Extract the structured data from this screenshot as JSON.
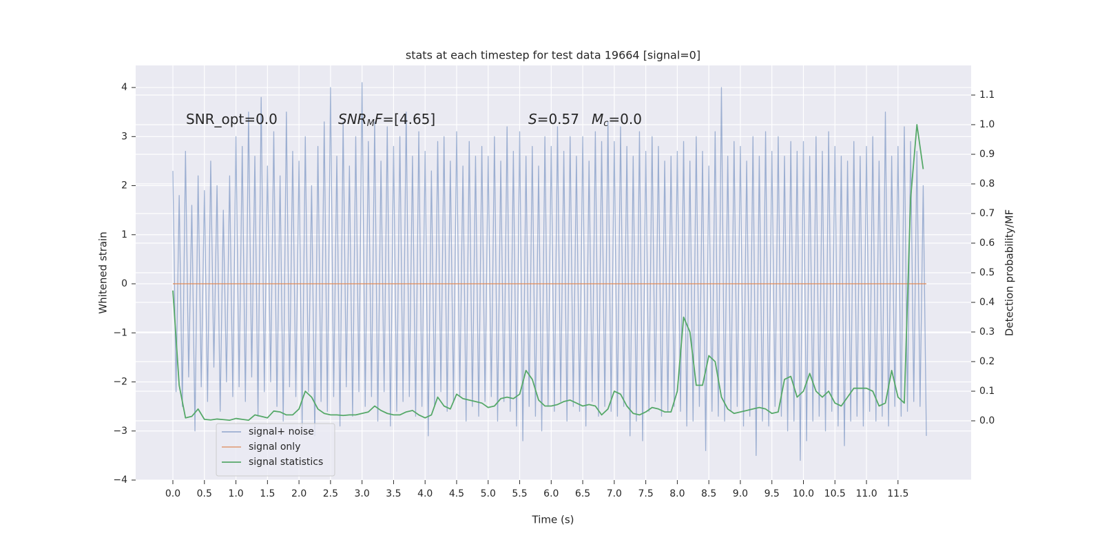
{
  "chart_data": {
    "type": "line",
    "title": "stats at each timestep for test data 19664 [signal=0]",
    "xlabel": "Time (s)",
    "ylabel": "Whitened strain",
    "y2label": "Detection probability/MF",
    "xlim": [
      -0.59,
      12.66
    ],
    "ylim": [
      -4.0,
      4.45
    ],
    "y2lim": [
      -0.2,
      1.2
    ],
    "xticks": [
      {
        "value": 0,
        "label": "0.0"
      },
      0.5,
      {
        "value": 1,
        "label": "1.0"
      },
      1.5,
      {
        "value": 2,
        "label": "2.0"
      },
      2.5,
      {
        "value": 3,
        "label": "3.0"
      },
      3.5,
      {
        "value": 4,
        "label": "4.0"
      },
      4.5,
      {
        "value": 5,
        "label": "5.0"
      },
      5.5,
      {
        "value": 6,
        "label": "6.0"
      },
      6.5,
      {
        "value": 7,
        "label": "7.0"
      },
      7.5,
      {
        "value": 8,
        "label": "8.0"
      },
      8.5,
      {
        "value": 9,
        "label": "9.0"
      },
      9.5,
      {
        "value": 10,
        "label": "10.0"
      },
      10.5,
      {
        "value": 11,
        "label": "11.0"
      },
      11.5
    ],
    "yticks": [
      {
        "value": -4,
        "label": "−4"
      },
      {
        "value": -3,
        "label": "−3"
      },
      {
        "value": -2,
        "label": "−2"
      },
      {
        "value": -1,
        "label": "−1"
      },
      0,
      1,
      2,
      3,
      4
    ],
    "y2ticks": [
      {
        "value": 0,
        "label": "0.0"
      },
      0.1,
      0.2,
      0.3,
      0.4,
      0.5,
      0.6,
      0.7,
      0.8,
      0.9,
      {
        "value": 1,
        "label": "1.0"
      },
      1.1
    ],
    "grid": true,
    "legend": "lower left",
    "annotations": [
      {
        "parts": [
          {
            "text": "SNR_opt=0.0"
          }
        ]
      },
      {
        "parts": [
          {
            "text": "SNR",
            "italic": true
          },
          {
            "text": "M",
            "italic": true,
            "sub": true
          },
          {
            "text": "F",
            "italic": true
          },
          {
            "text": "=[4.65]"
          }
        ]
      },
      {
        "parts": [
          {
            "text": "S",
            "italic": true
          },
          {
            "text": "=0.57"
          }
        ]
      },
      {
        "parts": [
          {
            "text": "M",
            "italic": true
          },
          {
            "text": "c",
            "italic": true,
            "sub": true
          },
          {
            "text": "=0.0"
          }
        ]
      }
    ],
    "series": [
      {
        "name": "signal+ noise",
        "color": "#4c72b0",
        "opacity": 0.5,
        "x": [
          0,
          0.05,
          0.1,
          0.15,
          0.2,
          0.25,
          0.3,
          0.35,
          0.4,
          0.45,
          0.5,
          0.55,
          0.6,
          0.65,
          0.7,
          0.75,
          0.8,
          0.85,
          0.9,
          0.95,
          1,
          1.05,
          1.1,
          1.15,
          1.2,
          1.25,
          1.3,
          1.35,
          1.4,
          1.45,
          1.5,
          1.55,
          1.6,
          1.65,
          1.7,
          1.75,
          1.8,
          1.85,
          1.9,
          1.95,
          2,
          2.05,
          2.1,
          2.15,
          2.2,
          2.25,
          2.3,
          2.35,
          2.4,
          2.45,
          2.5,
          2.55,
          2.6,
          2.65,
          2.7,
          2.75,
          2.8,
          2.85,
          2.9,
          2.95,
          3,
          3.05,
          3.1,
          3.15,
          3.2,
          3.25,
          3.3,
          3.35,
          3.4,
          3.45,
          3.5,
          3.55,
          3.6,
          3.65,
          3.7,
          3.75,
          3.8,
          3.85,
          3.9,
          3.95,
          4,
          4.05,
          4.1,
          4.15,
          4.2,
          4.25,
          4.3,
          4.35,
          4.4,
          4.45,
          4.5,
          4.55,
          4.6,
          4.65,
          4.7,
          4.75,
          4.8,
          4.85,
          4.9,
          4.95,
          5,
          5.05,
          5.1,
          5.15,
          5.2,
          5.25,
          5.3,
          5.35,
          5.4,
          5.45,
          5.5,
          5.55,
          5.6,
          5.65,
          5.7,
          5.75,
          5.8,
          5.85,
          5.9,
          5.95,
          6,
          6.05,
          6.1,
          6.15,
          6.2,
          6.25,
          6.3,
          6.35,
          6.4,
          6.45,
          6.5,
          6.55,
          6.6,
          6.65,
          6.7,
          6.75,
          6.8,
          6.85,
          6.9,
          6.95,
          7,
          7.05,
          7.1,
          7.15,
          7.2,
          7.25,
          7.3,
          7.35,
          7.4,
          7.45,
          7.5,
          7.55,
          7.6,
          7.65,
          7.7,
          7.75,
          7.8,
          7.85,
          7.9,
          7.95,
          8,
          8.05,
          8.1,
          8.15,
          8.2,
          8.25,
          8.3,
          8.35,
          8.4,
          8.45,
          8.5,
          8.55,
          8.6,
          8.65,
          8.7,
          8.75,
          8.8,
          8.85,
          8.9,
          8.95,
          9,
          9.05,
          9.1,
          9.15,
          9.2,
          9.25,
          9.3,
          9.35,
          9.4,
          9.45,
          9.5,
          9.55,
          9.6,
          9.65,
          9.7,
          9.75,
          9.8,
          9.85,
          9.9,
          9.95,
          10,
          10.05,
          10.1,
          10.15,
          10.2,
          10.25,
          10.3,
          10.35,
          10.4,
          10.45,
          10.5,
          10.55,
          10.6,
          10.65,
          10.7,
          10.75,
          10.8,
          10.85,
          10.9,
          10.95,
          11,
          11.05,
          11.1,
          11.15,
          11.2,
          11.25,
          11.3,
          11.35,
          11.4,
          11.45,
          11.5,
          11.55,
          11.6,
          11.65,
          11.7,
          11.75,
          11.8,
          11.85,
          11.9,
          11.95
        ],
        "values": [
          2.3,
          -2.2,
          1.8,
          -2.5,
          2.7,
          -1.9,
          1.6,
          -3.0,
          2.2,
          -2.1,
          1.9,
          -2.4,
          2.5,
          -1.7,
          2.0,
          -2.6,
          1.5,
          -2.0,
          2.2,
          -2.3,
          3.0,
          -2.1,
          2.8,
          -2.4,
          3.5,
          -1.9,
          2.6,
          -2.7,
          3.8,
          -2.2,
          2.4,
          -2.0,
          3.1,
          -2.5,
          2.2,
          -2.8,
          3.5,
          -2.1,
          2.7,
          -2.3,
          2.5,
          -2.9,
          3.0,
          -2.2,
          2.0,
          -3.1,
          2.8,
          -2.4,
          3.3,
          -2.6,
          4.0,
          -2.3,
          2.6,
          -2.9,
          3.3,
          -2.1,
          2.4,
          -2.7,
          3.0,
          -2.2,
          4.1,
          -2.5,
          2.9,
          -2.3,
          3.3,
          -2.8,
          2.5,
          -2.2,
          3.2,
          -2.9,
          2.8,
          -2.6,
          3.0,
          -2.4,
          3.5,
          -2.3,
          2.6,
          -2.7,
          3.1,
          -2.5,
          2.7,
          -3.1,
          2.3,
          -2.5,
          2.9,
          -2.2,
          3.0,
          -2.6,
          2.5,
          -2.4,
          3.1,
          -2.3,
          2.4,
          -2.8,
          2.9,
          -2.5,
          2.6,
          -2.7,
          2.8,
          -2.4,
          2.6,
          -2.3,
          3.0,
          -2.8,
          2.5,
          -2.4,
          3.2,
          -2.6,
          2.7,
          -2.9,
          3.1,
          -3.2,
          2.6,
          -2.5,
          2.8,
          -2.7,
          2.4,
          -3.0,
          3.0,
          -2.5,
          2.8,
          -2.6,
          3.2,
          -2.4,
          2.7,
          -2.8,
          3.0,
          -2.5,
          2.6,
          -2.6,
          3.0,
          -2.9,
          2.5,
          -2.4,
          3.1,
          -2.7,
          2.9,
          -2.5,
          3.3,
          -2.6,
          2.9,
          -2.7,
          3.2,
          -2.5,
          2.8,
          -3.1,
          2.6,
          -2.8,
          3.1,
          -3.2,
          2.7,
          -2.6,
          3.0,
          -2.4,
          2.8,
          -2.7,
          2.5,
          -2.6,
          2.6,
          -2.5,
          2.7,
          -2.6,
          2.9,
          -2.9,
          2.5,
          -2.8,
          3.0,
          -2.5,
          2.7,
          -3.4,
          2.4,
          -2.6,
          3.1,
          -2.7,
          4.0,
          -2.8,
          2.6,
          -2.6,
          2.9,
          -2.5,
          2.8,
          -2.9,
          2.5,
          -2.7,
          3.0,
          -3.5,
          2.6,
          -2.8,
          3.1,
          -2.9,
          2.7,
          -2.5,
          3.0,
          -2.7,
          2.6,
          -3.0,
          2.9,
          -2.8,
          2.7,
          -3.6,
          2.9,
          -3.2,
          2.6,
          -2.8,
          3.0,
          -2.7,
          2.7,
          -3.0,
          3.1,
          -2.6,
          2.8,
          -2.9,
          2.6,
          -3.3,
          2.5,
          -2.8,
          2.9,
          -2.7,
          2.6,
          -2.9,
          2.8,
          -2.6,
          3.0,
          -2.8,
          2.5,
          -2.7,
          3.5,
          -2.9,
          2.6,
          -2.5,
          2.8,
          -2.7,
          3.2,
          -2.6,
          2.9,
          -2.4,
          2.7,
          -2.5,
          2.0,
          -3.1
        ]
      },
      {
        "name": "signal only",
        "color": "#dd8452",
        "opacity": 0.7,
        "x": [
          0,
          11.95
        ],
        "values": [
          0,
          0
        ]
      },
      {
        "name": "signal statistics",
        "color": "#55a868",
        "opacity": 1,
        "axis": "y2",
        "x": [
          0,
          0.1,
          0.2,
          0.3,
          0.4,
          0.5,
          0.6,
          0.7,
          0.8,
          0.9,
          1,
          1.1,
          1.2,
          1.3,
          1.4,
          1.5,
          1.6,
          1.7,
          1.8,
          1.9,
          2,
          2.1,
          2.2,
          2.3,
          2.4,
          2.5,
          2.6,
          2.7,
          2.8,
          2.9,
          3,
          3.1,
          3.2,
          3.3,
          3.4,
          3.5,
          3.6,
          3.7,
          3.8,
          3.9,
          4,
          4.1,
          4.2,
          4.3,
          4.4,
          4.5,
          4.6,
          4.7,
          4.8,
          4.9,
          5,
          5.1,
          5.2,
          5.3,
          5.4,
          5.5,
          5.6,
          5.7,
          5.8,
          5.9,
          6,
          6.1,
          6.2,
          6.3,
          6.4,
          6.5,
          6.6,
          6.7,
          6.8,
          6.9,
          7,
          7.1,
          7.2,
          7.3,
          7.4,
          7.5,
          7.6,
          7.7,
          7.8,
          7.9,
          8,
          8.1,
          8.2,
          8.3,
          8.4,
          8.5,
          8.6,
          8.7,
          8.8,
          8.9,
          9,
          9.1,
          9.2,
          9.3,
          9.4,
          9.5,
          9.6,
          9.7,
          9.8,
          9.9,
          10,
          10.1,
          10.2,
          10.3,
          10.4,
          10.5,
          10.6,
          10.7,
          10.8,
          10.9,
          11,
          11.1,
          11.2,
          11.3,
          11.4,
          11.5,
          11.6,
          11.7,
          11.8,
          11.9
        ],
        "values": [
          0.44,
          0.12,
          0.01,
          0.015,
          0.04,
          0.005,
          0.003,
          0.006,
          0.004,
          0.002,
          0.008,
          0.005,
          0.002,
          0.02,
          0.015,
          0.01,
          0.033,
          0.03,
          0.02,
          0.02,
          0.04,
          0.1,
          0.08,
          0.04,
          0.025,
          0.02,
          0.02,
          0.018,
          0.02,
          0.02,
          0.025,
          0.03,
          0.05,
          0.035,
          0.025,
          0.02,
          0.02,
          0.03,
          0.035,
          0.02,
          0.01,
          0.02,
          0.08,
          0.05,
          0.04,
          0.09,
          0.075,
          0.07,
          0.065,
          0.06,
          0.045,
          0.05,
          0.075,
          0.08,
          0.075,
          0.09,
          0.17,
          0.14,
          0.07,
          0.05,
          0.05,
          0.055,
          0.065,
          0.07,
          0.06,
          0.05,
          0.055,
          0.05,
          0.02,
          0.04,
          0.1,
          0.09,
          0.05,
          0.025,
          0.02,
          0.03,
          0.045,
          0.04,
          0.03,
          0.03,
          0.1,
          0.35,
          0.3,
          0.12,
          0.12,
          0.22,
          0.2,
          0.08,
          0.04,
          0.025,
          0.03,
          0.035,
          0.04,
          0.045,
          0.04,
          0.025,
          0.03,
          0.14,
          0.15,
          0.08,
          0.1,
          0.16,
          0.1,
          0.08,
          0.1,
          0.06,
          0.05,
          0.08,
          0.11,
          0.11,
          0.11,
          0.1,
          0.05,
          0.06,
          0.17,
          0.08,
          0.06,
          0.75,
          1.0,
          0.85
        ]
      }
    ]
  }
}
